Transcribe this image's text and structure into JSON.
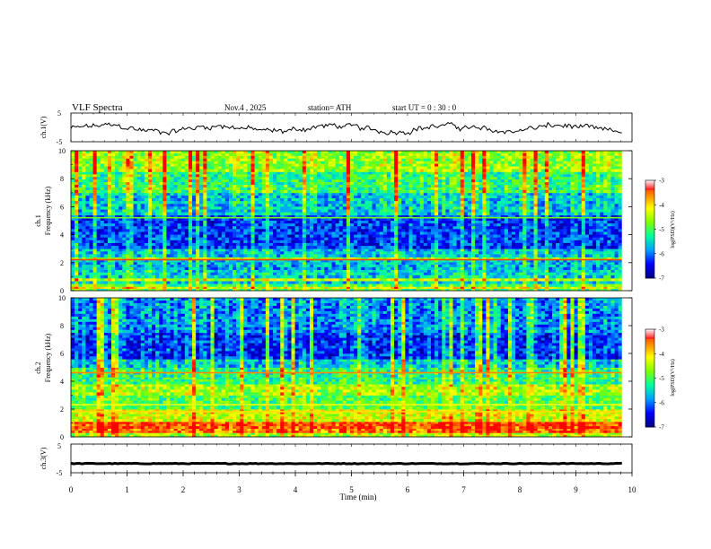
{
  "header": {
    "title": "VLF  Spectra",
    "date": "Nov.4  , 2025",
    "station": "station= ATH",
    "start_ut": "start  UT  =   0  : 30 : 0"
  },
  "chart_data": [
    {
      "id": "ch1-waveform",
      "type": "line",
      "ylabel": "ch.1(V)",
      "ylim": [
        -5,
        5
      ],
      "yticks": [
        "5",
        "-5"
      ],
      "xlim": [
        0,
        10
      ],
      "x_end": 9.82,
      "samples": 320,
      "approx_range_V": [
        -2.8,
        1.7
      ]
    },
    {
      "id": "ch1-spectrogram",
      "type": "heatmap",
      "ylabel_top": "ch.1",
      "ylabel": "Frequency  (kHz)",
      "ylim": [
        0,
        10
      ],
      "yticks": [
        "0",
        "2",
        "4",
        "6",
        "8",
        "10"
      ],
      "xlim": [
        0,
        10
      ],
      "x_end": 9.82,
      "colorbar": {
        "label": "log(PSD) (V²/Hz)",
        "range": [
          -7,
          -3
        ],
        "ticks": [
          "-3",
          "-4",
          "-5",
          "-6",
          "-7"
        ]
      },
      "band_levels": [
        {
          "f0": 0.0,
          "f1": 0.15,
          "psd": -5.0
        },
        {
          "f0": 0.15,
          "f1": 0.3,
          "psd": -4.3
        },
        {
          "f0": 0.3,
          "f1": 0.5,
          "psd": -5.0
        },
        {
          "f0": 0.5,
          "f1": 0.7,
          "psd": -5.6
        },
        {
          "f0": 0.7,
          "f1": 0.9,
          "psd": -4.5
        },
        {
          "f0": 0.9,
          "f1": 1.5,
          "psd": -5.6
        },
        {
          "f0": 1.5,
          "f1": 2.2,
          "psd": -5.8
        },
        {
          "f0": 2.2,
          "f1": 2.4,
          "psd": -4.8
        },
        {
          "f0": 2.4,
          "f1": 3.0,
          "psd": -5.7
        },
        {
          "f0": 3.0,
          "f1": 5.4,
          "psd": -6.3
        },
        {
          "f0": 5.4,
          "f1": 7.0,
          "psd": -5.7
        },
        {
          "f0": 7.0,
          "f1": 8.5,
          "psd": -5.2
        },
        {
          "f0": 8.5,
          "f1": 10.0,
          "psd": -4.7
        }
      ],
      "lines_kHz": [
        {
          "f": 2.2,
          "psd": -3.3
        },
        {
          "f": 5.2,
          "psd": -4.8
        }
      ]
    },
    {
      "id": "ch2-spectrogram",
      "type": "heatmap",
      "ylabel_top": "ch.2",
      "ylabel": "Frequency  (kHz)",
      "ylim": [
        0,
        10
      ],
      "yticks": [
        "0",
        "2",
        "4",
        "6",
        "8",
        "10"
      ],
      "xlim": [
        0,
        10
      ],
      "x_end": 9.82,
      "colorbar": {
        "label": "log(PSD) (V²/Hz)",
        "range": [
          -7,
          -3
        ],
        "ticks": [
          "-3",
          "-4",
          "-5",
          "-6",
          "-7"
        ]
      },
      "band_levels": [
        {
          "f0": 0.0,
          "f1": 0.3,
          "psd": -4.6
        },
        {
          "f0": 0.3,
          "f1": 0.6,
          "psd": -3.6
        },
        {
          "f0": 0.6,
          "f1": 1.1,
          "psd": -3.4
        },
        {
          "f0": 1.1,
          "f1": 2.0,
          "psd": -4.4
        },
        {
          "f0": 2.0,
          "f1": 3.0,
          "psd": -5.0
        },
        {
          "f0": 3.0,
          "f1": 3.8,
          "psd": -4.6
        },
        {
          "f0": 3.8,
          "f1": 4.3,
          "psd": -5.2
        },
        {
          "f0": 4.3,
          "f1": 5.0,
          "psd": -5.3
        },
        {
          "f0": 5.0,
          "f1": 5.6,
          "psd": -5.7
        },
        {
          "f0": 5.6,
          "f1": 7.5,
          "psd": -6.4
        },
        {
          "f0": 7.5,
          "f1": 10.0,
          "psd": -6.0
        }
      ],
      "lines_kHz": [
        {
          "f": 4.6,
          "psd": -3.6
        },
        {
          "f": 1.8,
          "psd": -4.0
        },
        {
          "f": 2.3,
          "psd": -4.2
        }
      ]
    },
    {
      "id": "ch3-waveform",
      "type": "line",
      "ylabel": "ch.3(V)",
      "ylim": [
        -5,
        5
      ],
      "yticks": [
        "5",
        "-5"
      ],
      "xlim": [
        0,
        10
      ],
      "x_end": 9.82,
      "mean_V": -1.8
    }
  ],
  "xaxis": {
    "label": "Time  (min)",
    "ticks": [
      "0",
      "1",
      "2",
      "3",
      "4",
      "5",
      "6",
      "7",
      "8",
      "9",
      "10"
    ]
  },
  "colorbar_label": "log(PSD)(V²/Hz)",
  "colors": {
    "jet": [
      "#000080",
      "#0000ff",
      "#00a0ff",
      "#00ffa0",
      "#80ff00",
      "#ffff00",
      "#ff8000",
      "#ff0000",
      "#ffffff"
    ]
  }
}
